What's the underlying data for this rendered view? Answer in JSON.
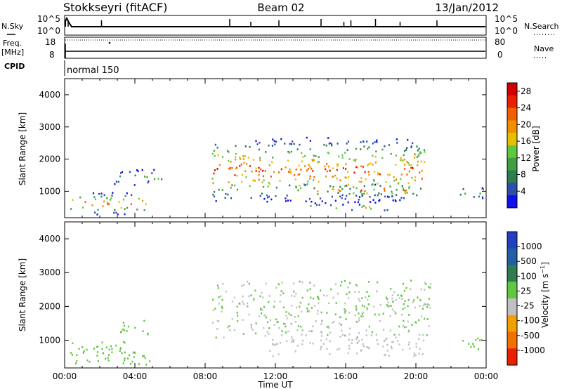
{
  "header": {
    "station": "Stokkseyri (fitACF)",
    "beam": "Beam 02",
    "date": "13/Jan/2012"
  },
  "left_labels": {
    "nsky": "N.Sky",
    "freq": "Freq.",
    "freq_unit": "[MHz]",
    "cpid": "CPID"
  },
  "right_labels": {
    "nsearch": "N.Search",
    "nave": "Nave"
  },
  "mode_label": "normal 150",
  "colors": {
    "low_scatter": "#3333aa",
    "green_scatter": "#44aa44",
    "ground_scatter": "#c0c0c0"
  },
  "chart_data": [
    {
      "type": "line",
      "name": "noise-panel",
      "left_ticks": [
        "10^5",
        "10^0"
      ],
      "right_ticks": [
        "10^5",
        "10^0"
      ],
      "baseline": "10^0",
      "spikes_x_hours": [
        0.2,
        2.1,
        9.4,
        10.6,
        12.2,
        14.6,
        15.9,
        16.3,
        17.7,
        19.1,
        21.2
      ]
    },
    {
      "type": "line",
      "name": "freq-panel",
      "left_ticks": [
        "18",
        "8"
      ],
      "right_ticks": [
        "80",
        "0"
      ],
      "freq_mhz": 10,
      "nave_dotted": 80
    },
    {
      "type": "heatmap",
      "name": "power",
      "ylabel": "Slant Range [km]",
      "yticks": [
        "1000",
        "2000",
        "3000",
        "4000"
      ],
      "ylim": [
        180,
        4500
      ],
      "xlim_hours": [
        0,
        24
      ],
      "colorbar": {
        "label": "Power [dB]",
        "ticks": [
          "4",
          "8",
          "12",
          "16",
          "20",
          "24",
          "28"
        ],
        "range": [
          0,
          30
        ],
        "colors": [
          "#1010e8",
          "#2c4faa",
          "#2e7c50",
          "#40a040",
          "#60c840",
          "#e6c000",
          "#f09000",
          "#f06000",
          "#e82000",
          "#d00000"
        ]
      },
      "regions": [
        {
          "t0": 0.3,
          "t1": 4.7,
          "r0": 300,
          "r1": 1000,
          "max_db": 26
        },
        {
          "t0": 2.8,
          "t1": 5.5,
          "r0": 1200,
          "r1": 1700,
          "max_db": 14
        },
        {
          "t0": 8.3,
          "t1": 20.5,
          "r0": 650,
          "r1": 2700,
          "max_db": 30
        },
        {
          "t0": 12.5,
          "t1": 19.5,
          "r0": 850,
          "r1": 1250,
          "max_db": 30
        },
        {
          "t0": 13.8,
          "t1": 18.5,
          "r0": 420,
          "r1": 620,
          "max_db": 28
        },
        {
          "t0": 22.5,
          "t1": 23.8,
          "r0": 750,
          "r1": 1150,
          "max_db": 14
        }
      ]
    },
    {
      "type": "heatmap",
      "name": "velocity",
      "ylabel": "Slant Range [km]",
      "yticks": [
        "1000",
        "2000",
        "3000",
        "4000"
      ],
      "ylim": [
        180,
        4500
      ],
      "xlim_hours": [
        0,
        24
      ],
      "colorbar": {
        "label": "Velocity [m s^-1]",
        "ticks": [
          "1000",
          "500",
          "100",
          "25",
          "-25",
          "-100",
          "-500",
          "-1000"
        ],
        "range": [
          -1200,
          1200
        ],
        "colors": [
          "#2040c0",
          "#2060a0",
          "#2e7c50",
          "#60c840",
          "#c0c0c0",
          "#f0a000",
          "#f07000",
          "#e82000"
        ]
      },
      "regions": [
        {
          "t0": 0.3,
          "t1": 4.8,
          "r0": 300,
          "r1": 1000,
          "velocity_m_s": 100
        },
        {
          "t0": 3.0,
          "t1": 4.8,
          "r0": 1200,
          "r1": 1700,
          "velocity_m_s": 150
        },
        {
          "t0": 8.3,
          "t1": 20.8,
          "r0": 1100,
          "r1": 2800,
          "velocity_m_s": 0
        },
        {
          "t0": 11.5,
          "t1": 20.5,
          "r0": 550,
          "r1": 1250,
          "velocity_m_s": -150
        },
        {
          "t0": 22.5,
          "t1": 23.8,
          "r0": 700,
          "r1": 1200,
          "velocity_m_s": 200
        }
      ],
      "xticks": [
        "00:00",
        "04:00",
        "08:00",
        "12:00",
        "16:00",
        "20:00",
        "00:00"
      ],
      "xlabel": "Time UT"
    }
  ]
}
